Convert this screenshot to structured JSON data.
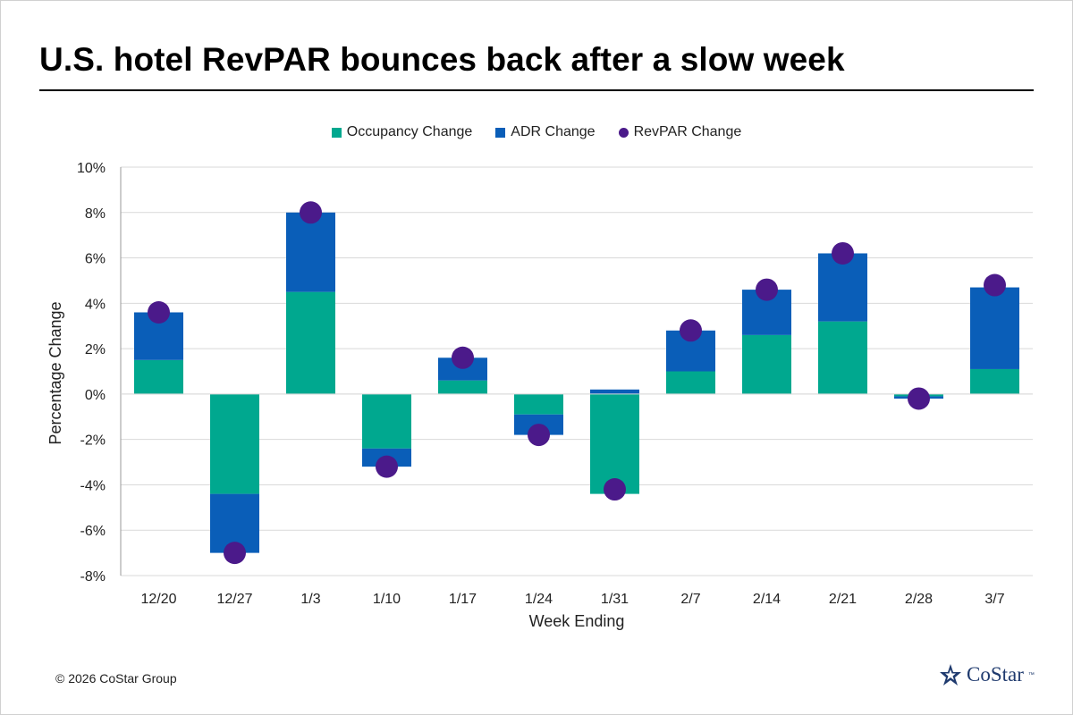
{
  "title": "U.S. hotel RevPAR bounces back after a slow week",
  "footer": "© 2026 CoStar Group",
  "logo": {
    "text": "CoStar",
    "tm": "™"
  },
  "colors": {
    "occupancy": "#00a88f",
    "adr": "#0a5eb8",
    "revpar": "#4b1a8a",
    "logo": "#1f3a6e"
  },
  "legend": [
    {
      "label": "Occupancy Change",
      "shape": "square",
      "color": "#00a88f"
    },
    {
      "label": "ADR Change",
      "shape": "square",
      "color": "#0a5eb8"
    },
    {
      "label": "RevPAR Change",
      "shape": "circle",
      "color": "#4b1a8a"
    }
  ],
  "chart_data": {
    "type": "bar",
    "stacked": true,
    "title": "U.S. hotel RevPAR bounces back after a slow week",
    "xlabel": "Week Ending",
    "ylabel": "Percentage Change",
    "ylim": [
      -8,
      10
    ],
    "yticks": [
      -8,
      -6,
      -4,
      -2,
      0,
      2,
      4,
      6,
      8,
      10
    ],
    "ytick_format": "%",
    "grid": true,
    "legend_position": "top-center",
    "categories": [
      "12/20",
      "12/27",
      "1/3",
      "1/10",
      "1/17",
      "1/24",
      "1/31",
      "2/7",
      "2/14",
      "2/21",
      "2/28",
      "3/7"
    ],
    "series": [
      {
        "name": "Occupancy Change",
        "type": "bar",
        "values": [
          1.5,
          -4.4,
          4.5,
          -2.4,
          0.6,
          -0.9,
          -4.4,
          1.0,
          2.6,
          3.2,
          -0.1,
          1.1
        ]
      },
      {
        "name": "ADR Change",
        "type": "bar",
        "values": [
          2.1,
          -2.6,
          3.5,
          -0.8,
          1.0,
          -0.9,
          0.2,
          1.8,
          2.0,
          3.0,
          -0.1,
          3.6
        ]
      },
      {
        "name": "RevPAR Change",
        "type": "scatter",
        "values": [
          3.6,
          -7.0,
          8.0,
          -3.2,
          1.6,
          -1.8,
          -4.2,
          2.8,
          4.6,
          6.2,
          -0.2,
          4.8
        ]
      }
    ]
  }
}
